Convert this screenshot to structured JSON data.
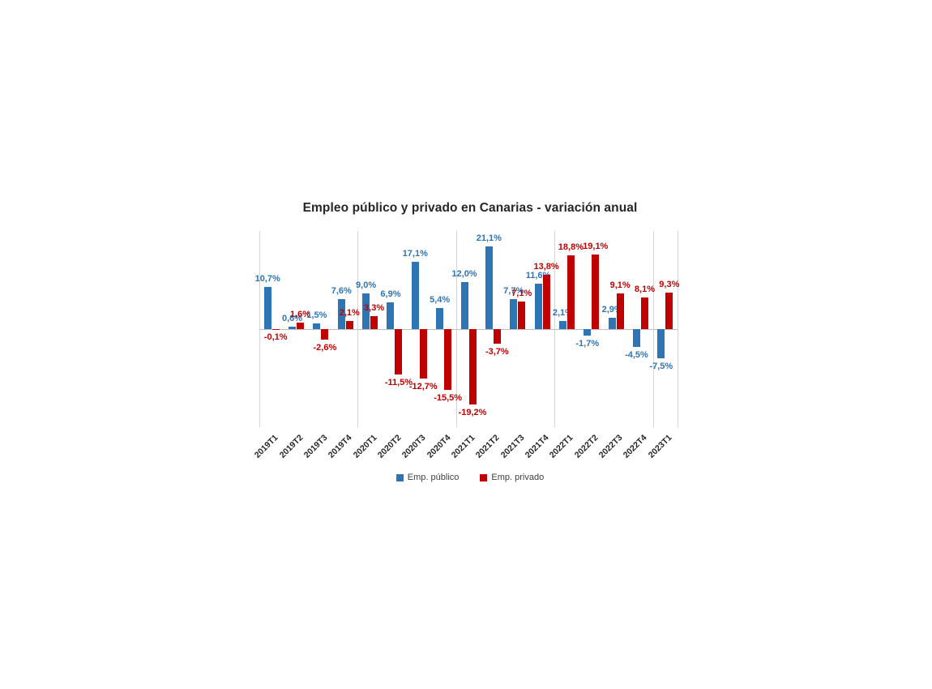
{
  "chart_data": {
    "type": "bar",
    "title": "Empleo público y privado en Canarias - variación anual",
    "categories": [
      "2019T1",
      "2019T2",
      "2019T3",
      "2019T4",
      "2020T1",
      "2020T2",
      "2020T3",
      "2020T4",
      "2021T1",
      "2021T2",
      "2021T3",
      "2021T4",
      "2022T1",
      "2022T2",
      "2022T3",
      "2022T4",
      "2023T1"
    ],
    "series": [
      {
        "name": "Emp. público",
        "color": "#2E75B6",
        "values": [
          10.7,
          0.6,
          1.5,
          7.6,
          9.0,
          6.9,
          17.1,
          5.4,
          12.0,
          21.1,
          7.7,
          11.6,
          2.1,
          -1.7,
          2.9,
          -4.5,
          -7.5
        ],
        "labels": [
          "10,7%",
          "0,6%",
          "1,5%",
          "7,6%",
          "9,0%",
          "6,9%",
          "17,1%",
          "5,4%",
          "12,0%",
          "21,1%",
          "7,7%",
          "11,6%",
          "2,1%",
          "-1,7%",
          "2,9%",
          "-4,5%",
          "-7,5%"
        ]
      },
      {
        "name": "Emp. privado",
        "color": "#C00000",
        "values": [
          -0.1,
          1.6,
          -2.6,
          2.1,
          3.3,
          -11.5,
          -12.7,
          -15.5,
          -19.2,
          -3.7,
          7.1,
          13.8,
          18.8,
          19.1,
          9.1,
          8.1,
          9.3
        ],
        "labels": [
          "-0,1%",
          "1,6%",
          "-2,6%",
          "2,1%",
          "3,3%",
          "-11,5%",
          "-12,7%",
          "-15,5%",
          "-19,2%",
          "-3,7%",
          "7,1%",
          "13,8%",
          "18,8%",
          "19,1%",
          "9,1%",
          "8,1%",
          "9,3%"
        ]
      }
    ],
    "ylim": [
      -25,
      25
    ],
    "grid": "vertical-year-separators-only",
    "legend_position": "bottom-center",
    "xlabel": "",
    "ylabel": ""
  },
  "colors": {
    "gridline": "#D6D6D6",
    "axis_line": "#BFBFBF",
    "title_text": "#262626",
    "category_text": "#262626",
    "legend_text": "#404040",
    "background": "#FFFFFF"
  }
}
